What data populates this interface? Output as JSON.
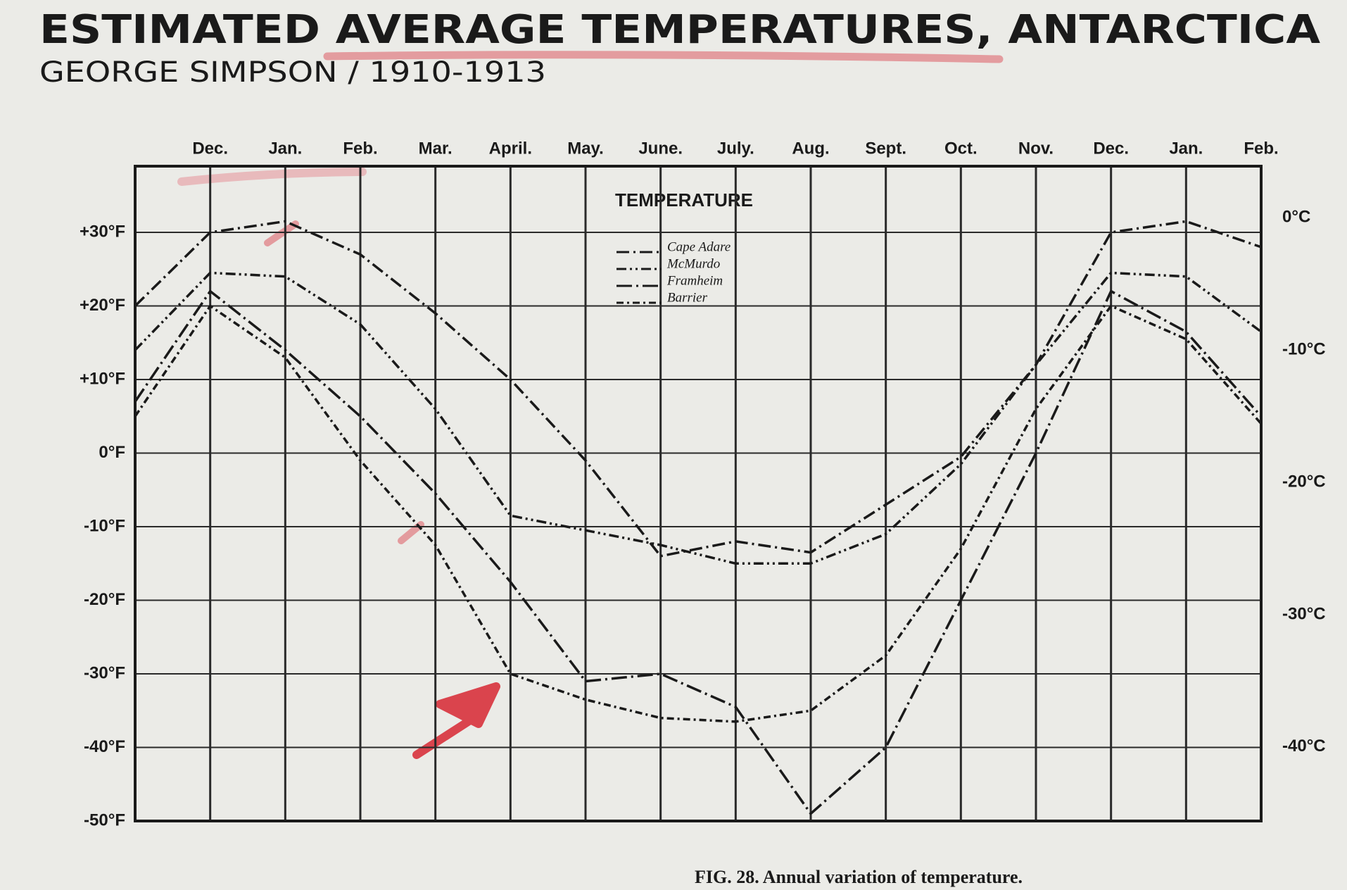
{
  "chart_data": {
    "type": "line",
    "title": "ESTIMATED AVERAGE TEMPERATURES, ANTARCTICA",
    "subtitle": "GEORGE SIMPSON / 1910-1913",
    "plot_title": "TEMPERATURE",
    "caption": "FIG. 28.   Annual variation of temperature.",
    "categories": [
      null,
      "Dec.",
      "Jan.",
      "Feb.",
      "Mar.",
      "April.",
      "May.",
      "June.",
      "July.",
      "Aug.",
      "Sept.",
      "Oct.",
      "Nov.",
      "Dec.",
      "Jan.",
      "Feb."
    ],
    "series": [
      {
        "name": "Cape Adare",
        "color": "#1a1a1a",
        "values": [
          20,
          30,
          31.5,
          27,
          19,
          10,
          -1,
          -14,
          -12,
          -13.5,
          -7,
          -0.5,
          12,
          30,
          31.5,
          28
        ]
      },
      {
        "name": "McMurdo",
        "color": "#1a1a1a",
        "values": [
          14,
          24.5,
          24,
          17.5,
          6,
          -8.5,
          -10.5,
          -12.5,
          -15,
          -15,
          -11,
          -1.5,
          12,
          24.5,
          24,
          16.5
        ]
      },
      {
        "name": "Framheim",
        "color": "#1a1a1a",
        "values": [
          7,
          22,
          14,
          5,
          -5.5,
          -17.5,
          -31,
          -30,
          -34.5,
          -49,
          -40,
          -20,
          0,
          22,
          16.5,
          5
        ]
      },
      {
        "name": "Barrier",
        "color": "#1a1a1a",
        "values": [
          5,
          20,
          13,
          -1,
          -12.5,
          -30,
          -33.5,
          -36,
          -36.5,
          -35,
          -27.5,
          -13,
          6,
          20,
          15.5,
          4
        ]
      }
    ],
    "ylim": [
      -50,
      39
    ],
    "yticks": [
      {
        "value": 30,
        "label": "+30°F"
      },
      {
        "value": 20,
        "label": "+20°F"
      },
      {
        "value": 10,
        "label": "+10°F"
      },
      {
        "value": 0,
        "label": "0°F"
      },
      {
        "value": -10,
        "label": "-10°F"
      },
      {
        "value": -20,
        "label": "-20°F"
      },
      {
        "value": -30,
        "label": "-30°F"
      },
      {
        "value": -40,
        "label": "-40°F"
      },
      {
        "value": -50,
        "label": "-50°F"
      }
    ],
    "y2lim": [
      -45.6,
      3.9
    ],
    "y2ticks": [
      {
        "value": 0,
        "label": "0°C"
      },
      {
        "value": -10,
        "label": "-10°C"
      },
      {
        "value": -20,
        "label": "-20°C"
      },
      {
        "value": -30,
        "label": "-30°C"
      },
      {
        "value": -40,
        "label": "-40°C"
      }
    ],
    "grid": true
  }
}
